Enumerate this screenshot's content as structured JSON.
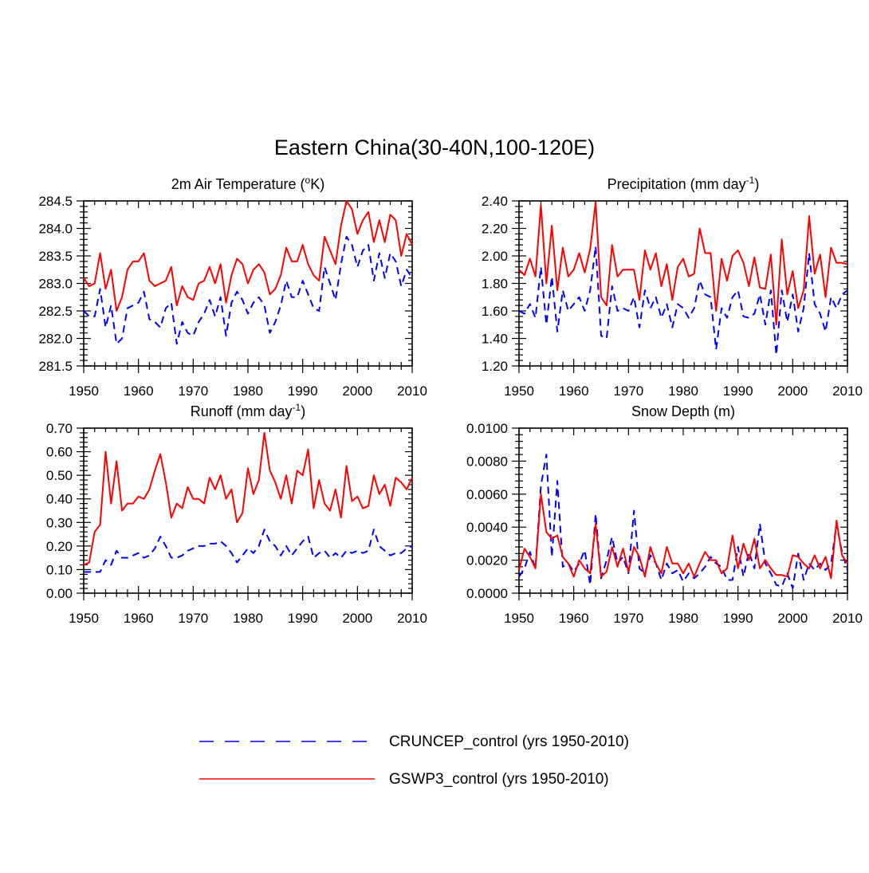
{
  "figure_title": "Eastern China(30-40N,100-120E)",
  "colors": {
    "cruncep": "#0000ff",
    "gswp3": "#ff0000",
    "axis": "#000000"
  },
  "legend": [
    {
      "label": "CRUNCEP_control (yrs 1950-2010)",
      "color": "#0000ff",
      "style": "dashed"
    },
    {
      "label": "GSWP3_control (yrs 1950-2010)",
      "color": "#ff0000",
      "style": "solid"
    }
  ],
  "chart_data": [
    {
      "type": "line",
      "title": "2m Air Temperature (",
      "title_sup": "o",
      "title_tail": "K)",
      "xlim": [
        1950,
        2010
      ],
      "ylim": [
        281.5,
        284.5
      ],
      "xticks": [
        1950,
        1960,
        1970,
        1980,
        1990,
        2000,
        2010
      ],
      "yticks": [
        "281.5",
        "282.0",
        "282.5",
        "283.0",
        "283.5",
        "284.0",
        "284.5"
      ],
      "x_start": 1950,
      "series": [
        {
          "name": "CRUNCEP_control",
          "color": "#0000ff",
          "dash": true,
          "values": [
            282.5,
            282.4,
            282.4,
            282.9,
            282.2,
            282.6,
            281.9,
            282.0,
            282.55,
            282.6,
            282.65,
            282.85,
            282.35,
            282.3,
            282.2,
            282.55,
            282.65,
            281.9,
            282.3,
            282.1,
            282.05,
            282.3,
            282.45,
            282.7,
            282.4,
            282.75,
            282.05,
            282.65,
            282.85,
            282.7,
            282.45,
            282.65,
            282.75,
            282.6,
            282.1,
            282.3,
            282.6,
            283.05,
            282.75,
            282.75,
            283.05,
            282.8,
            282.55,
            282.5,
            283.3,
            283.0,
            282.7,
            283.35,
            283.85,
            283.7,
            283.3,
            283.6,
            283.7,
            283.05,
            283.55,
            283.1,
            283.55,
            283.4,
            282.95,
            283.25,
            283.1
          ]
        },
        {
          "name": "GSWP3_control",
          "color": "#ff0000",
          "dash": false,
          "values": [
            283.1,
            282.95,
            283.0,
            283.55,
            282.9,
            283.25,
            282.5,
            282.75,
            283.25,
            283.4,
            283.4,
            283.55,
            283.05,
            282.95,
            283.0,
            283.05,
            283.3,
            282.6,
            282.95,
            282.75,
            282.7,
            283.0,
            283.05,
            283.3,
            283.0,
            283.35,
            282.65,
            283.15,
            283.45,
            283.35,
            283.0,
            283.25,
            283.35,
            283.2,
            282.8,
            282.9,
            283.15,
            283.65,
            283.4,
            283.4,
            283.7,
            283.35,
            283.15,
            283.05,
            283.85,
            283.6,
            283.35,
            284.05,
            284.5,
            284.35,
            283.9,
            284.15,
            284.3,
            283.75,
            284.15,
            283.75,
            284.25,
            284.15,
            283.5,
            283.9,
            283.7
          ]
        }
      ]
    },
    {
      "type": "line",
      "title": "Precipitation (mm day",
      "title_sup": "-1",
      "title_tail": ")",
      "xlim": [
        1950,
        2010
      ],
      "ylim": [
        1.2,
        2.4
      ],
      "xticks": [
        1950,
        1960,
        1970,
        1980,
        1990,
        2000,
        2010
      ],
      "yticks": [
        "1.20",
        "1.40",
        "1.60",
        "1.80",
        "2.00",
        "2.20",
        "2.40"
      ],
      "x_start": 1950,
      "series": [
        {
          "name": "CRUNCEP_control",
          "color": "#0000ff",
          "dash": true,
          "values": [
            1.6,
            1.58,
            1.65,
            1.55,
            1.92,
            1.5,
            1.85,
            1.45,
            1.75,
            1.6,
            1.65,
            1.7,
            1.6,
            1.75,
            2.07,
            1.42,
            1.4,
            1.78,
            1.6,
            1.62,
            1.6,
            1.7,
            1.48,
            1.75,
            1.62,
            1.7,
            1.55,
            1.65,
            1.48,
            1.65,
            1.62,
            1.55,
            1.62,
            1.82,
            1.72,
            1.7,
            1.32,
            1.62,
            1.55,
            1.7,
            1.75,
            1.56,
            1.55,
            1.58,
            1.72,
            1.5,
            1.75,
            1.28,
            1.75,
            1.52,
            1.72,
            1.45,
            1.62,
            2.02,
            1.65,
            1.58,
            1.45,
            1.7,
            1.62,
            1.72,
            1.75
          ]
        },
        {
          "name": "GSWP3_control",
          "color": "#ff0000",
          "dash": false,
          "values": [
            1.9,
            1.86,
            1.98,
            1.85,
            2.37,
            1.8,
            2.22,
            1.75,
            2.06,
            1.85,
            1.9,
            2.02,
            1.88,
            2.05,
            2.39,
            1.7,
            1.64,
            2.08,
            1.85,
            1.9,
            1.9,
            1.9,
            1.68,
            2.04,
            1.9,
            2.02,
            1.78,
            1.94,
            1.68,
            1.92,
            1.98,
            1.85,
            1.87,
            2.2,
            2.02,
            2.02,
            1.6,
            1.98,
            1.82,
            2.0,
            2.04,
            1.95,
            1.78,
            1.99,
            1.77,
            1.76,
            2.01,
            1.5,
            2.12,
            1.72,
            1.89,
            1.62,
            1.75,
            2.29,
            1.87,
            2.01,
            1.7,
            2.06,
            1.95,
            1.95,
            1.94
          ]
        }
      ]
    },
    {
      "type": "line",
      "title": "Runoff (mm day",
      "title_sup": "-1",
      "title_tail": ")",
      "xlim": [
        1950,
        2010
      ],
      "ylim": [
        0.0,
        0.7
      ],
      "xticks": [
        1950,
        1960,
        1970,
        1980,
        1990,
        2000,
        2010
      ],
      "yticks": [
        "0.00",
        "0.10",
        "0.20",
        "0.30",
        "0.40",
        "0.50",
        "0.60",
        "0.70"
      ],
      "x_start": 1950,
      "series": [
        {
          "name": "CRUNCEP_control",
          "color": "#0000ff",
          "dash": true,
          "values": [
            0.09,
            0.09,
            0.09,
            0.09,
            0.14,
            0.12,
            0.18,
            0.15,
            0.15,
            0.16,
            0.17,
            0.15,
            0.16,
            0.19,
            0.24,
            0.2,
            0.15,
            0.15,
            0.16,
            0.18,
            0.19,
            0.2,
            0.2,
            0.21,
            0.21,
            0.22,
            0.2,
            0.17,
            0.13,
            0.16,
            0.19,
            0.17,
            0.2,
            0.27,
            0.22,
            0.2,
            0.16,
            0.2,
            0.16,
            0.19,
            0.22,
            0.24,
            0.15,
            0.17,
            0.18,
            0.15,
            0.17,
            0.15,
            0.18,
            0.17,
            0.18,
            0.17,
            0.18,
            0.27,
            0.2,
            0.18,
            0.16,
            0.17,
            0.17,
            0.19,
            0.2
          ]
        },
        {
          "name": "GSWP3_control",
          "color": "#ff0000",
          "dash": false,
          "values": [
            0.12,
            0.13,
            0.26,
            0.29,
            0.6,
            0.38,
            0.56,
            0.35,
            0.38,
            0.38,
            0.41,
            0.4,
            0.44,
            0.52,
            0.59,
            0.47,
            0.32,
            0.38,
            0.36,
            0.45,
            0.4,
            0.4,
            0.38,
            0.49,
            0.44,
            0.5,
            0.4,
            0.44,
            0.3,
            0.34,
            0.53,
            0.42,
            0.48,
            0.68,
            0.52,
            0.47,
            0.4,
            0.5,
            0.38,
            0.52,
            0.5,
            0.61,
            0.36,
            0.48,
            0.38,
            0.35,
            0.44,
            0.32,
            0.54,
            0.39,
            0.41,
            0.36,
            0.37,
            0.5,
            0.42,
            0.46,
            0.37,
            0.49,
            0.47,
            0.44,
            0.49
          ]
        }
      ]
    },
    {
      "type": "line",
      "title": "Snow Depth (m)",
      "title_sup": "",
      "title_tail": "",
      "xlim": [
        1950,
        2010
      ],
      "ylim": [
        0.0,
        0.01
      ],
      "xticks": [
        1950,
        1960,
        1970,
        1980,
        1990,
        2000,
        2010
      ],
      "yticks": [
        "0.0000",
        "0.0020",
        "0.0040",
        "0.0060",
        "0.0080",
        "0.0100"
      ],
      "x_start": 1950,
      "series": [
        {
          "name": "CRUNCEP_control",
          "color": "#0000ff",
          "dash": true,
          "values": [
            0.001,
            0.0015,
            0.0025,
            0.0015,
            0.0065,
            0.0084,
            0.0022,
            0.0068,
            0.0016,
            0.0018,
            0.0013,
            0.0018,
            0.0026,
            0.0005,
            0.0048,
            0.0009,
            0.002,
            0.0034,
            0.0018,
            0.0022,
            0.0012,
            0.005,
            0.0015,
            0.0012,
            0.0023,
            0.0018,
            0.0008,
            0.0018,
            0.0012,
            0.0014,
            0.0007,
            0.0012,
            0.0009,
            0.0012,
            0.0016,
            0.0022,
            0.0018,
            0.0016,
            0.0008,
            0.0008,
            0.0028,
            0.001,
            0.0025,
            0.0015,
            0.0042,
            0.0018,
            0.0012,
            0.0005,
            0.0004,
            0.0012,
            0.0003,
            0.0024,
            0.0008,
            0.0018,
            0.0014,
            0.0018,
            0.0014,
            0.0018,
            0.0042,
            0.0025,
            0.0014
          ]
        },
        {
          "name": "GSWP3_control",
          "color": "#ff0000",
          "dash": false,
          "values": [
            0.0014,
            0.0027,
            0.0022,
            0.0015,
            0.006,
            0.0037,
            0.0033,
            0.0035,
            0.0022,
            0.0018,
            0.001,
            0.002,
            0.0015,
            0.0012,
            0.0042,
            0.001,
            0.0013,
            0.0028,
            0.0016,
            0.0027,
            0.0013,
            0.0028,
            0.0022,
            0.001,
            0.0028,
            0.0018,
            0.0012,
            0.0028,
            0.0018,
            0.0018,
            0.0012,
            0.0018,
            0.001,
            0.0018,
            0.0025,
            0.002,
            0.002,
            0.0012,
            0.0015,
            0.0035,
            0.0015,
            0.003,
            0.002,
            0.0033,
            0.0015,
            0.002,
            0.0015,
            0.0011,
            0.0011,
            0.001,
            0.0023,
            0.0022,
            0.0018,
            0.0015,
            0.0023,
            0.0015,
            0.0022,
            0.0009,
            0.0044,
            0.0023,
            0.0018
          ]
        }
      ]
    }
  ]
}
